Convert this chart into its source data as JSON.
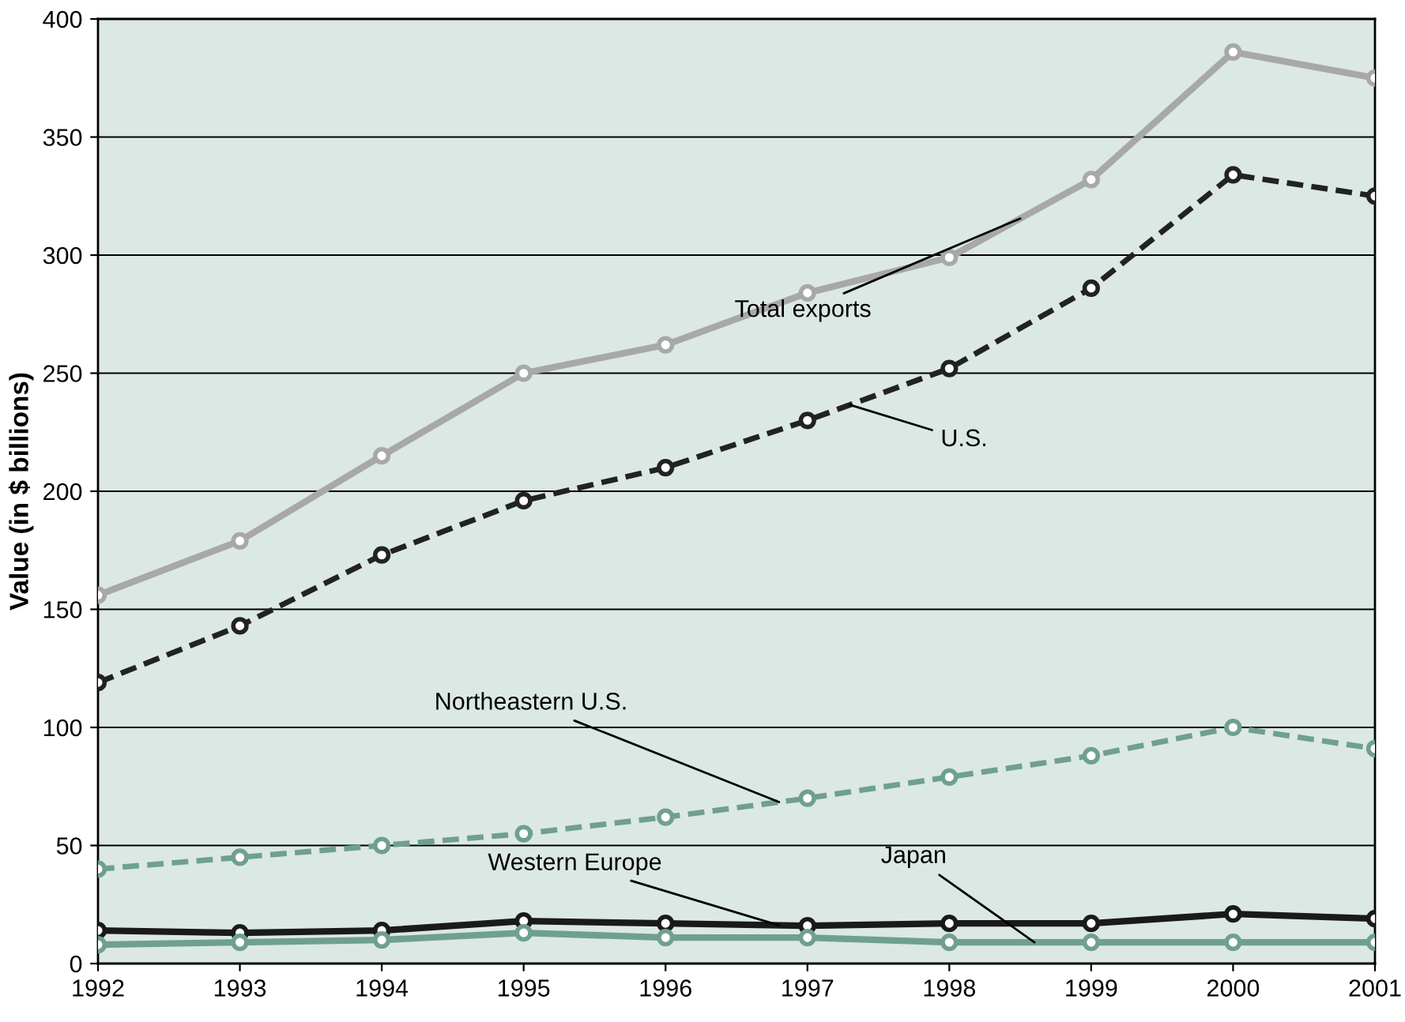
{
  "chart_data": {
    "type": "line",
    "ylabel": "Value (in $ billions)",
    "x": [
      1992,
      1993,
      1994,
      1995,
      1996,
      1997,
      1998,
      1999,
      2000,
      2001
    ],
    "xlim": [
      1992,
      2001
    ],
    "xticks": [
      1992,
      1993,
      1994,
      1995,
      1996,
      1997,
      1998,
      1999,
      2000,
      2001
    ],
    "ylim": [
      0,
      400
    ],
    "yticks": [
      0,
      50,
      100,
      150,
      200,
      250,
      300,
      350,
      400
    ],
    "grid": "y",
    "legend": false,
    "marker": "circle",
    "series": [
      {
        "name": "Total exports",
        "color": "#a8a8a8",
        "line_style": "solid",
        "values": [
          156,
          179,
          215,
          250,
          262,
          284,
          299,
          332,
          386,
          375
        ]
      },
      {
        "name": "U.S.",
        "color": "#222222",
        "line_style": "dashed",
        "values": [
          119,
          143,
          173,
          196,
          210,
          230,
          252,
          286,
          334,
          325
        ]
      },
      {
        "name": "Northeastern U.S.",
        "color": "#6fa08f",
        "line_style": "dashed",
        "values": [
          40,
          45,
          50,
          55,
          62,
          70,
          79,
          88,
          100,
          91
        ]
      },
      {
        "name": "Western Europe",
        "color": "#1a1a1a",
        "line_style": "solid",
        "values": [
          14,
          13,
          14,
          18,
          17,
          16,
          17,
          17,
          21,
          19
        ]
      },
      {
        "name": "Japan",
        "color": "#6fa08f",
        "line_style": "solid",
        "values": [
          8,
          9,
          10,
          13,
          11,
          11,
          9,
          9,
          9,
          9
        ]
      }
    ]
  }
}
